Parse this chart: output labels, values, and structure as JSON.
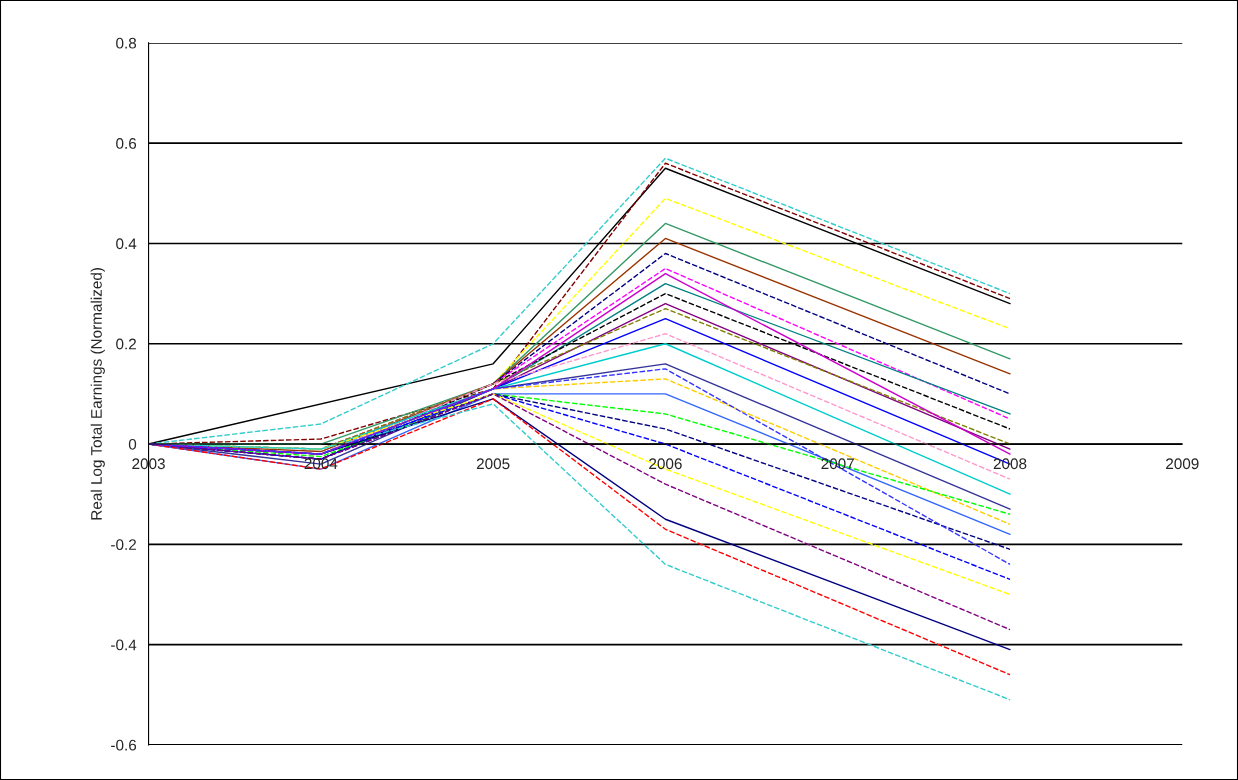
{
  "chart_data": {
    "type": "line",
    "ylabel": "Real Log Total Earnings (Normalized)",
    "x": [
      2003,
      2004,
      2005,
      2006,
      2008
    ],
    "xlim": [
      2003,
      2009
    ],
    "xticks": [
      2003,
      2004,
      2005,
      2006,
      2007,
      2008,
      2009
    ],
    "ylim": [
      -0.6,
      0.8
    ],
    "yticks": [
      -0.6,
      -0.4,
      -0.2,
      0,
      0.2,
      0.4,
      0.6,
      0.8
    ],
    "grid": "y",
    "legend": false,
    "marker": "none",
    "series": [
      {
        "color": "#000000",
        "x": [
          2003,
          2005,
          2006,
          2008
        ],
        "values": [
          0,
          0.16,
          0.55,
          0.28
        ],
        "line_style": "solid"
      },
      {
        "color": "#800000",
        "values": [
          0,
          0.01,
          0.11,
          0.56,
          0.29
        ],
        "line_style": "dashed"
      },
      {
        "color": "#33cccc",
        "values": [
          0,
          0.04,
          0.2,
          0.57,
          0.3
        ],
        "line_style": "dashed"
      },
      {
        "color": "#ffff00",
        "values": [
          0,
          -0.01,
          0.12,
          0.49,
          0.23
        ],
        "line_style": "dashed"
      },
      {
        "color": "#339966",
        "values": [
          0,
          0,
          0.12,
          0.44,
          0.17
        ],
        "line_style": "solid"
      },
      {
        "color": "#993300",
        "values": [
          0,
          -0.015,
          0.12,
          0.41,
          0.14
        ],
        "line_style": "solid"
      },
      {
        "color": "#000080",
        "values": [
          0,
          -0.02,
          0.12,
          0.38,
          0.1
        ],
        "line_style": "dashed"
      },
      {
        "color": "#ff00ff",
        "values": [
          0,
          -0.01,
          0.12,
          0.35,
          0.05
        ],
        "line_style": "dashed"
      },
      {
        "color": "#008080",
        "values": [
          0,
          -0.02,
          0.11,
          0.32,
          0.06
        ],
        "line_style": "solid"
      },
      {
        "color": "#000000",
        "values": [
          0,
          -0.03,
          0.12,
          0.3,
          0.03
        ],
        "line_style": "dashed"
      },
      {
        "color": "#800080",
        "values": [
          0,
          -0.02,
          0.11,
          0.28,
          -0.01
        ],
        "line_style": "solid"
      },
      {
        "color": "#808000",
        "values": [
          0,
          -0.01,
          0.12,
          0.27,
          0.0
        ],
        "line_style": "dashed"
      },
      {
        "color": "#0000ff",
        "values": [
          0,
          -0.03,
          0.11,
          0.25,
          -0.04
        ],
        "line_style": "solid"
      },
      {
        "color": "#ff99cc",
        "values": [
          0,
          -0.02,
          0.12,
          0.22,
          -0.07
        ],
        "line_style": "dashed"
      },
      {
        "color": "#00cccc",
        "values": [
          0,
          -0.01,
          0.11,
          0.2,
          -0.1
        ],
        "line_style": "solid"
      },
      {
        "color": "#333399",
        "values": [
          0,
          -0.04,
          0.11,
          0.16,
          -0.13
        ],
        "line_style": "solid"
      },
      {
        "color": "#ffcc00",
        "values": [
          0,
          -0.02,
          0.11,
          0.13,
          -0.16
        ],
        "line_style": "dashed"
      },
      {
        "color": "#3366ff",
        "values": [
          0,
          -0.05,
          0.1,
          0.1,
          -0.18
        ],
        "line_style": "solid"
      },
      {
        "color": "#00ff00",
        "values": [
          0,
          -0.025,
          0.1,
          0.06,
          -0.14
        ],
        "line_style": "dashed"
      },
      {
        "color": "#000080",
        "values": [
          0,
          -0.03,
          0.1,
          0.03,
          -0.21
        ],
        "line_style": "dashed"
      },
      {
        "color": "#0000ff",
        "values": [
          0,
          -0.02,
          0.1,
          0.0,
          -0.27
        ],
        "line_style": "dashed"
      },
      {
        "color": "#ffff00",
        "values": [
          0,
          -0.01,
          0.1,
          -0.05,
          -0.3
        ],
        "line_style": "dashed"
      },
      {
        "color": "#800080",
        "values": [
          0,
          -0.03,
          0.1,
          -0.08,
          -0.37
        ],
        "line_style": "dashed"
      },
      {
        "color": "#000080",
        "values": [
          0,
          -0.02,
          0.09,
          -0.15,
          -0.41
        ],
        "line_style": "solid"
      },
      {
        "color": "#ff0000",
        "values": [
          0,
          -0.05,
          0.09,
          -0.17,
          -0.46
        ],
        "line_style": "dashed"
      },
      {
        "color": "#33cccc",
        "values": [
          0,
          -0.01,
          0.08,
          -0.24,
          -0.51
        ],
        "line_style": "dashed"
      },
      {
        "color": "#cc00cc",
        "values": [
          0,
          -0.02,
          0.11,
          0.34,
          -0.02
        ],
        "line_style": "solid"
      },
      {
        "color": "#3333ff",
        "values": [
          0,
          -0.02,
          0.11,
          0.15,
          -0.24
        ],
        "line_style": "dashed"
      }
    ]
  }
}
